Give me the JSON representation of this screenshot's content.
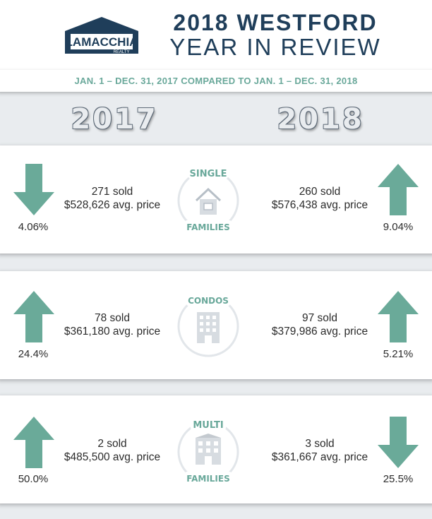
{
  "header": {
    "logo_text": "LAMACCHIA",
    "logo_subtext": "REALTY",
    "title_line1": "2018 WESTFORD",
    "title_line2": "YEAR IN REVIEW"
  },
  "date_range": "JAN. 1  –  DEC. 31, 2017 COMPARED TO JAN. 1  –  DEC. 31, 2018",
  "years": {
    "left": "2017",
    "right": "2018"
  },
  "colors": {
    "arrow": "#6aaa99",
    "navy": "#1f3e5a",
    "teal_text": "#69a89a"
  },
  "sections": [
    {
      "badge_top": "SINGLE",
      "badge_bottom": "FAMILIES",
      "icon": "house-icon",
      "left": {
        "trend": "down",
        "pct": "4.06%",
        "sold": "271 sold",
        "price": "$528,626 avg. price"
      },
      "right": {
        "trend": "up",
        "pct": "9.04%",
        "sold": "260 sold",
        "price": "$576,438 avg. price"
      }
    },
    {
      "badge_top": "CONDOS",
      "badge_bottom": "",
      "icon": "building-icon",
      "left": {
        "trend": "up",
        "pct": "24.4%",
        "sold": "78 sold",
        "price": "$361,180 avg. price"
      },
      "right": {
        "trend": "up",
        "pct": "5.21%",
        "sold": "97 sold",
        "price": "$379,986 avg. price"
      }
    },
    {
      "badge_top": "MULTI",
      "badge_bottom": "FAMILIES",
      "icon": "apartment-icon",
      "left": {
        "trend": "up",
        "pct": "50.0%",
        "sold": "2 sold",
        "price": "$485,500 avg. price"
      },
      "right": {
        "trend": "down",
        "pct": "25.5%",
        "sold": "3 sold",
        "price": "$361,667 avg. price"
      }
    }
  ]
}
